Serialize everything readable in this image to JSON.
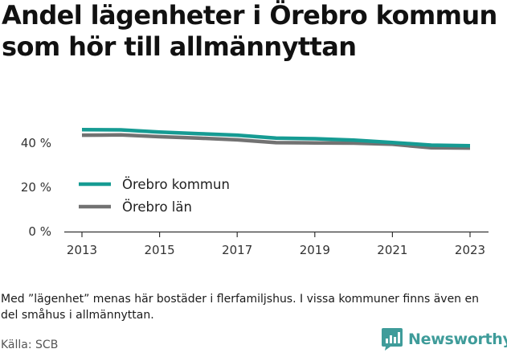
{
  "title_line1": "Andel lägenheter i Örebro kommun",
  "title_line2": "som hör till allmännyttan",
  "chart_data": {
    "type": "line",
    "x": [
      2013,
      2014,
      2015,
      2016,
      2017,
      2018,
      2019,
      2020,
      2021,
      2022,
      2023
    ],
    "series": [
      {
        "name": "Örebro kommun",
        "color": "#169b93",
        "values": [
          46.1,
          46.0,
          45.0,
          44.3,
          43.6,
          42.3,
          42.0,
          41.4,
          40.3,
          39.1,
          38.8
        ]
      },
      {
        "name": "Örebro län",
        "color": "#727272",
        "values": [
          43.6,
          43.7,
          42.9,
          42.3,
          41.5,
          40.2,
          40.1,
          40.0,
          39.5,
          37.9,
          37.8
        ]
      }
    ],
    "ylim": [
      0,
      48
    ],
    "yticks": [
      0,
      20,
      40
    ],
    "ytick_labels": [
      "0 %",
      "20 %",
      "40 %"
    ],
    "xticks": [
      2013,
      2015,
      2017,
      2019,
      2021,
      2023
    ],
    "xtick_labels": [
      "2013",
      "2015",
      "2017",
      "2019",
      "2021",
      "2023"
    ],
    "legend_placement": "inside-left",
    "grid": false
  },
  "note": "Med ”lägenhet” menas här bostäder i flerfamiljshus. I vissa kommuner finns även en del småhus i allmännyttan.",
  "source": "Källa: SCB",
  "brand": {
    "name": "Newsworthy",
    "color": "#3f9c9a",
    "icon": "bar-chart-logo-icon"
  }
}
